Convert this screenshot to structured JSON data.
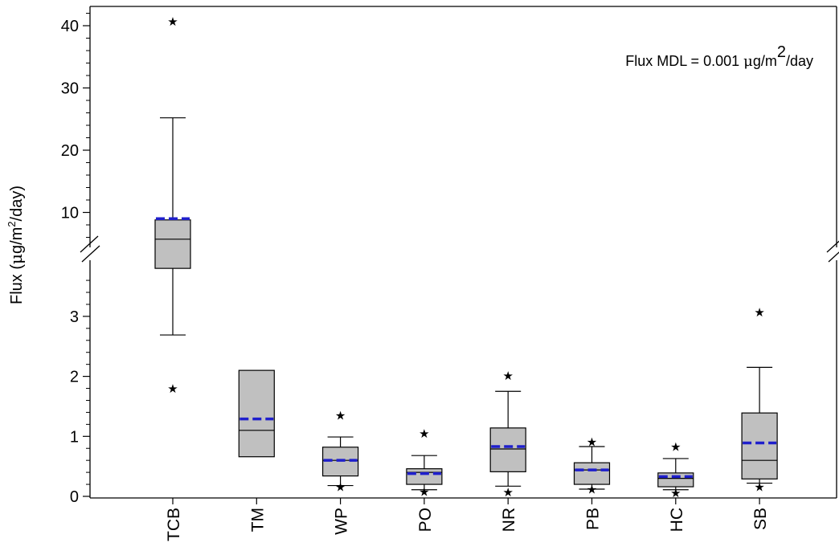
{
  "chart_data": {
    "type": "box",
    "categories": [
      "TCB",
      "TM",
      "WP",
      "PO",
      "NR",
      "PB",
      "HC",
      "SB"
    ],
    "ylabel": "Flux (μg/m²/day)",
    "ylabel_parts": {
      "pre": "Flux (",
      "mu": "μ",
      "unit": "g/m",
      "sup": "2",
      "post": "/day)"
    },
    "annotation": {
      "pre": "Flux MDL = 0.001 ",
      "mu": "μ",
      "unit": "g/m",
      "sup": "2",
      "post": "/day"
    },
    "y_axis": {
      "broken": true,
      "lower_range": [
        0,
        3.8
      ],
      "upper_range": [
        5,
        42
      ],
      "lower_ticks": [
        0,
        1,
        2,
        3
      ],
      "upper_ticks": [
        10,
        20,
        30,
        40
      ],
      "tick_labels": {
        "0": "0",
        "1": "1",
        "2": "2",
        "3": "3",
        "10": "10",
        "20": "20",
        "30": "30",
        "40": "40"
      }
    },
    "grid": false,
    "mean_line_color": "#1f1fcc",
    "box_fill_color": "#c0c0c0",
    "boxes": [
      {
        "category": "TCB",
        "q1": 3.8,
        "median": 5.7,
        "q3": 8.8,
        "mean": 9.0,
        "whisker_low": 2.69,
        "whisker_high": 25.2,
        "outliers": [
          40.8,
          1.81
        ]
      },
      {
        "category": "TM",
        "q1": 0.66,
        "median": 1.1,
        "q3": 2.1,
        "mean": 1.29,
        "whisker_low": null,
        "whisker_high": null,
        "outliers": []
      },
      {
        "category": "WP",
        "q1": 0.34,
        "median": 0.6,
        "q3": 0.82,
        "mean": 0.6,
        "whisker_low": 0.18,
        "whisker_high": 0.99,
        "outliers": [
          1.36,
          0.17
        ]
      },
      {
        "category": "PO",
        "q1": 0.2,
        "median": 0.4,
        "q3": 0.46,
        "mean": 0.38,
        "whisker_low": 0.11,
        "whisker_high": 0.68,
        "outliers": [
          1.06,
          0.09
        ]
      },
      {
        "category": "NR",
        "q1": 0.41,
        "median": 0.79,
        "q3": 1.14,
        "mean": 0.83,
        "whisker_low": 0.17,
        "whisker_high": 1.75,
        "outliers": [
          2.02,
          0.08
        ]
      },
      {
        "category": "PB",
        "q1": 0.2,
        "median": 0.44,
        "q3": 0.56,
        "mean": 0.44,
        "whisker_low": 0.12,
        "whisker_high": 0.83,
        "outliers": [
          0.92,
          0.13
        ]
      },
      {
        "category": "HC",
        "q1": 0.16,
        "median": 0.3,
        "q3": 0.39,
        "mean": 0.33,
        "whisker_low": 0.11,
        "whisker_high": 0.63,
        "outliers": [
          0.84,
          0.07
        ]
      },
      {
        "category": "SB",
        "q1": 0.29,
        "median": 0.6,
        "q3": 1.39,
        "mean": 0.89,
        "whisker_low": 0.22,
        "whisker_high": 2.15,
        "outliers": [
          3.08,
          0.17
        ]
      }
    ]
  }
}
